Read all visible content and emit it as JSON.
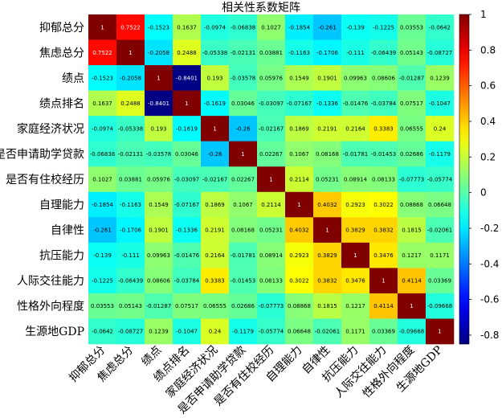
{
  "chart_data": {
    "type": "heatmap",
    "title": "相关性系数矩阵",
    "labels": [
      "抑郁总分",
      "焦虑总分",
      "绩点",
      "绩点排名",
      "家庭经济状况",
      "是否申请助学贷款",
      "是否有住校经历",
      "自理能力",
      "自律性",
      "抗压能力",
      "人际交往能力",
      "性格外向程度",
      "生源地GDP"
    ],
    "matrix": [
      [
        1,
        0.7522,
        -0.1523,
        0.1637,
        -0.0974,
        -0.06838,
        0.1027,
        -0.1854,
        -0.261,
        -0.139,
        -0.1225,
        0.03553,
        -0.0642
      ],
      [
        0.7522,
        1,
        -0.2058,
        0.2488,
        -0.05338,
        -0.02131,
        0.03881,
        -0.1163,
        -0.1706,
        -0.111,
        -0.06439,
        0.05143,
        -0.08727
      ],
      [
        -0.1523,
        -0.2058,
        1,
        -0.8401,
        0.193,
        -0.03578,
        0.05976,
        0.1549,
        0.1901,
        0.09963,
        0.08606,
        -0.01287,
        0.1239
      ],
      [
        0.1637,
        0.2488,
        -0.8401,
        1,
        -0.1619,
        0.03046,
        -0.03097,
        -0.07167,
        -0.1336,
        -0.01476,
        -0.03784,
        0.07517,
        -0.1047
      ],
      [
        -0.0974,
        -0.05338,
        0.193,
        -0.1619,
        1,
        -0.26,
        -0.02167,
        0.1869,
        0.2191,
        0.2164,
        0.3383,
        0.06555,
        0.24
      ],
      [
        -0.06838,
        -0.02131,
        -0.03578,
        0.03046,
        -0.26,
        1,
        0.02267,
        0.1067,
        0.08168,
        -0.01781,
        -0.01453,
        0.02686,
        -0.1179
      ],
      [
        0.1027,
        0.03881,
        0.05976,
        -0.03097,
        -0.02167,
        0.02267,
        1,
        0.2114,
        0.05231,
        0.08914,
        0.08133,
        -0.07773,
        -0.05774
      ],
      [
        -0.1854,
        -0.1163,
        0.1549,
        -0.07167,
        0.1869,
        0.1067,
        0.2114,
        1,
        0.4032,
        0.2923,
        0.3022,
        0.08868,
        0.06648
      ],
      [
        -0.261,
        -0.1706,
        0.1901,
        -0.1336,
        0.2191,
        0.08168,
        0.05231,
        0.4032,
        1,
        0.3829,
        0.3832,
        0.1815,
        -0.02061
      ],
      [
        -0.139,
        -0.111,
        0.09963,
        -0.01476,
        0.2164,
        -0.01781,
        0.08914,
        0.2923,
        0.3829,
        1,
        0.3476,
        0.1217,
        0.1171
      ],
      [
        -0.1225,
        -0.06439,
        0.08606,
        -0.03784,
        0.3383,
        -0.01453,
        0.08133,
        0.3022,
        0.3832,
        0.3476,
        1,
        0.4114,
        0.03369
      ],
      [
        0.03553,
        0.05143,
        -0.01287,
        0.07517,
        0.06555,
        0.02686,
        -0.07773,
        0.08868,
        0.1815,
        0.1217,
        0.4114,
        1,
        -0.09668
      ],
      [
        -0.0642,
        -0.08727,
        0.1239,
        -0.1047,
        0.24,
        -0.1179,
        -0.05774,
        0.06648,
        -0.02061,
        0.1171,
        0.03369,
        -0.09668,
        1
      ]
    ],
    "colorscale": "jet",
    "vmin": -0.85,
    "vmax": 1,
    "colorbar_ticks": [
      1,
      0.8,
      0.6,
      0.4,
      0.2,
      0,
      -0.2,
      -0.4,
      -0.6,
      -0.8
    ],
    "colorbar_tick_labels": [
      "1",
      "0.8",
      "0.6",
      "0.4",
      "0.2",
      "0",
      "-0.2",
      "-0.4",
      "-0.6",
      "-0.8"
    ]
  }
}
